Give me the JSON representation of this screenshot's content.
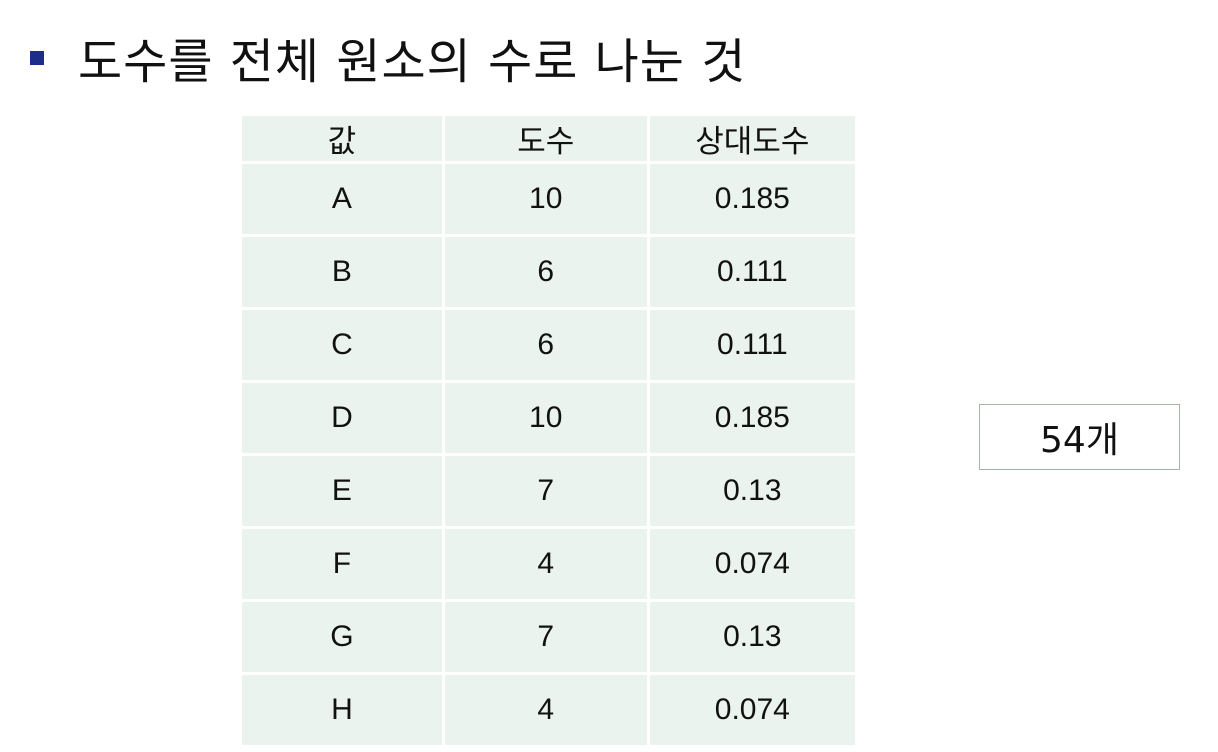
{
  "slide": {
    "heading": "도수를 전체 원소의 수로 나눈 것"
  },
  "table": {
    "headers": [
      "값",
      "도수",
      "상대도수"
    ],
    "rows": [
      [
        "A",
        "10",
        "0.185"
      ],
      [
        "B",
        "6",
        "0.111"
      ],
      [
        "C",
        "6",
        "0.111"
      ],
      [
        "D",
        "10",
        "0.185"
      ],
      [
        "E",
        "7",
        "0.13"
      ],
      [
        "F",
        "4",
        "0.074"
      ],
      [
        "G",
        "7",
        "0.13"
      ],
      [
        "H",
        "4",
        "0.074"
      ]
    ]
  },
  "total_box": {
    "label": "54개"
  },
  "colors": {
    "bullet": "#1f2d8a",
    "table_fill": "#eaf3ee",
    "box_border": "#9fb8a8"
  }
}
